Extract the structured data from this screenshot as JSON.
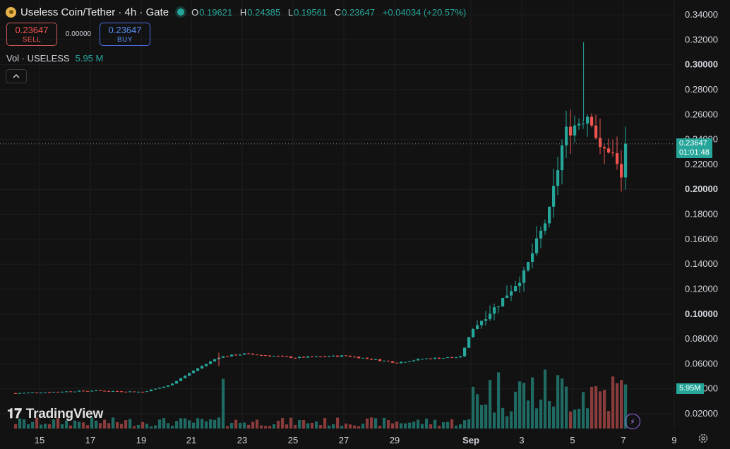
{
  "header": {
    "title": "Useless Coin/Tether · 4h · Gate",
    "ohlc": [
      {
        "k": "O",
        "v": "0.19621"
      },
      {
        "k": "H",
        "v": "0.24385"
      },
      {
        "k": "L",
        "v": "0.19561"
      },
      {
        "k": "C",
        "v": "0.23647"
      }
    ],
    "change": "+0.04034 (+20.57%)"
  },
  "trade": {
    "sell_price": "0.23647",
    "sell_label": "SELL",
    "spread": "0.00000",
    "buy_price": "0.23647",
    "buy_label": "BUY"
  },
  "volume": {
    "label": "Vol · USELESS",
    "value": "5.95 M"
  },
  "price_label": {
    "price": "0.23647",
    "countdown": "01:01:48"
  },
  "volume_label": "5.95M",
  "brand": "TradingView",
  "colors": {
    "up": "#26a69a",
    "down": "#ef5350",
    "vol_up": "#1f6b64",
    "vol_down": "#8a3b3b",
    "bg": "#121212"
  },
  "chart_data": {
    "type": "candlestick",
    "yticks": [
      "0.34000",
      "0.32000",
      "0.30000",
      "0.28000",
      "0.26000",
      "0.24000",
      "0.22000",
      "0.20000",
      "0.18000",
      "0.16000",
      "0.14000",
      "0.12000",
      "0.10000",
      "0.08000",
      "0.06000",
      "0.04000",
      "0.02000"
    ],
    "bold_yticks": [
      "0.30000",
      "0.20000",
      "0.10000"
    ],
    "ylim": [
      0.0,
      0.35
    ],
    "xticks": [
      "15",
      "17",
      "19",
      "21",
      "23",
      "25",
      "27",
      "29",
      "Sep",
      "3",
      "5",
      "7",
      "9"
    ],
    "bold_xticks": [
      "Sep"
    ],
    "last_close": 0.23647,
    "series": [
      {
        "name": "price",
        "points": [
          {
            "x": "Aug 14",
            "close": 0.0365
          },
          {
            "x": "Aug 17",
            "close": 0.0385
          },
          {
            "x": "Aug 19",
            "close": 0.0375
          },
          {
            "x": "Aug 20",
            "close": 0.0425
          },
          {
            "x": "Aug 21",
            "close": 0.0545
          },
          {
            "x": "Aug 22",
            "close": 0.0655
          },
          {
            "x": "Aug 23",
            "close": 0.068
          },
          {
            "x": "Aug 25",
            "close": 0.065
          },
          {
            "x": "Aug 27",
            "close": 0.0665
          },
          {
            "x": "Aug 29",
            "close": 0.061
          },
          {
            "x": "Aug 30",
            "close": 0.064
          },
          {
            "x": "Aug 31",
            "close": 0.0655
          },
          {
            "x": "Sep 1",
            "close": 0.0885
          },
          {
            "x": "Sep 2",
            "close": 0.108
          },
          {
            "x": "Sep 3",
            "close": 0.132
          },
          {
            "x": "Sep 4",
            "close": 0.182
          },
          {
            "x": "Sep 5",
            "close": 0.245
          },
          {
            "x": "Sep 6",
            "close": 0.23
          },
          {
            "x": "Sep 7",
            "close": 0.2365
          }
        ]
      },
      {
        "name": "volume",
        "unit": "M",
        "points": [
          {
            "x": "Aug 14",
            "value": 1.3
          },
          {
            "x": "Aug 21",
            "value": 1.2
          },
          {
            "x": "Aug 22",
            "value": 6.7
          },
          {
            "x": "Aug 29",
            "value": 0.5
          },
          {
            "x": "Sep 1",
            "value": 7.5
          },
          {
            "x": "Sep 2",
            "value": 9.2
          },
          {
            "x": "Sep 4",
            "value": 7.1
          },
          {
            "x": "Sep 5",
            "value": 11.7
          },
          {
            "x": "Sep 7",
            "value": 5.95
          }
        ]
      }
    ]
  }
}
